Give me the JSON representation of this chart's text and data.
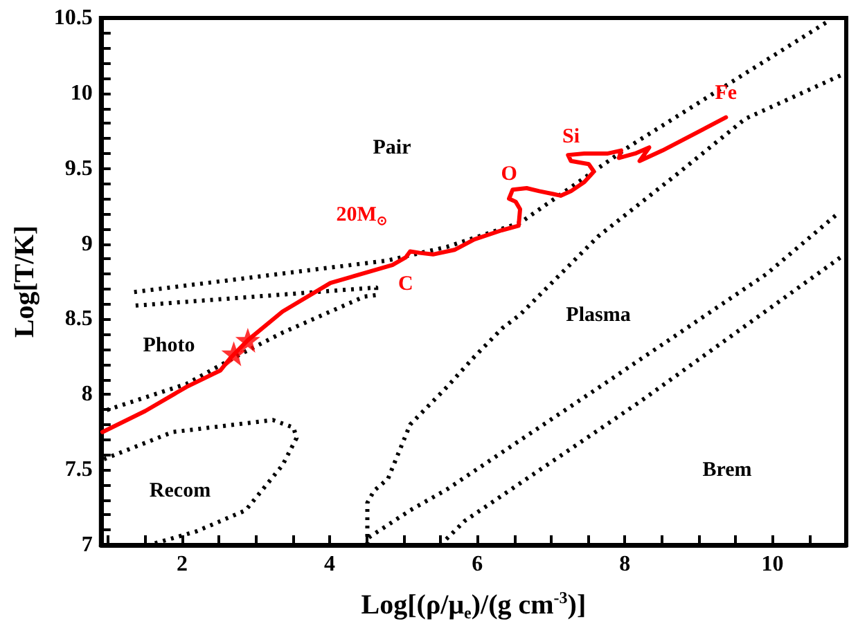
{
  "chart_data": {
    "type": "line",
    "xlabel": "Log[(ρ/μ$_{e}$)/(g cm$^{-3}$)]",
    "ylabel": "Log[T/K]",
    "xlim": [
      0.9,
      11
    ],
    "ylim": [
      7,
      10.5
    ],
    "xticks": [
      {
        "value": 1,
        "label": null
      },
      {
        "value": 1.5,
        "label": null
      },
      2,
      {
        "value": 2.5,
        "label": null
      },
      {
        "value": 3,
        "label": null
      },
      {
        "value": 3.5,
        "label": null
      },
      4,
      {
        "value": 4.5,
        "label": null
      },
      {
        "value": 5,
        "label": null
      },
      {
        "value": 5.5,
        "label": null
      },
      6,
      {
        "value": 6.5,
        "label": null
      },
      {
        "value": 7,
        "label": null
      },
      {
        "value": 7.5,
        "label": null
      },
      8,
      {
        "value": 8.5,
        "label": null
      },
      {
        "value": 9,
        "label": null
      },
      {
        "value": 9.5,
        "label": null
      },
      10,
      {
        "value": 10.5,
        "label": null
      }
    ],
    "yticks": [
      7,
      {
        "value": 7.1,
        "label": null
      },
      {
        "value": 7.2,
        "label": null
      },
      {
        "value": 7.3,
        "label": null
      },
      {
        "value": 7.4,
        "label": null
      },
      7.5,
      {
        "value": 7.6,
        "label": null
      },
      {
        "value": 7.7,
        "label": null
      },
      {
        "value": 7.8,
        "label": null
      },
      {
        "value": 7.9,
        "label": null
      },
      8,
      {
        "value": 8.1,
        "label": null
      },
      {
        "value": 8.2,
        "label": null
      },
      {
        "value": 8.3,
        "label": null
      },
      {
        "value": 8.4,
        "label": null
      },
      8.5,
      {
        "value": 8.6,
        "label": null
      },
      {
        "value": 8.7,
        "label": null
      },
      {
        "value": 8.8,
        "label": null
      },
      {
        "value": 8.9,
        "label": null
      },
      9,
      {
        "value": 9.1,
        "label": null
      },
      {
        "value": 9.2,
        "label": null
      },
      {
        "value": 9.3,
        "label": null
      },
      {
        "value": 9.4,
        "label": null
      },
      9.5,
      {
        "value": 9.6,
        "label": null
      },
      {
        "value": 9.7,
        "label": null
      },
      {
        "value": 9.8,
        "label": null
      },
      {
        "value": 9.9,
        "label": null
      },
      10,
      {
        "value": 10.1,
        "label": null
      },
      {
        "value": 10.2,
        "label": null
      },
      {
        "value": 10.3,
        "label": null
      },
      {
        "value": 10.4,
        "label": null
      },
      10.5
    ],
    "grid": false,
    "legend": false,
    "marker": "none",
    "line_style": "dotted",
    "series": [
      {
        "color": "#000000",
        "x": [
          1.35,
          4.79,
          5.59,
          6.58,
          8.07,
          10.76
        ],
        "values": [
          8.68,
          8.89,
          8.98,
          9.14,
          9.65,
          10.48
        ]
      },
      {
        "color": "#000000",
        "x": [
          1.37,
          4.63,
          4.63,
          4.47,
          3.36,
          2.8,
          2.06,
          0.94
        ],
        "values": [
          8.59,
          8.71,
          8.66,
          8.65,
          8.41,
          8.27,
          8.07,
          7.89
        ]
      },
      {
        "color": "#000000",
        "x": [
          0.94,
          1.87,
          3.23,
          3.51,
          3.55,
          3.36,
          2.86,
          2.19,
          1.55
        ],
        "values": [
          7.57,
          7.75,
          7.83,
          7.78,
          7.71,
          7.53,
          7.23,
          7.09,
          7.0
        ]
      },
      {
        "color": "#000000",
        "x": [
          4.51,
          4.51,
          4.6,
          4.79,
          5.09,
          5.59,
          5.96,
          6.34,
          6.58,
          7.13,
          7.64,
          8.7,
          9.63,
          10.93
        ],
        "values": [
          7.0,
          7.28,
          7.36,
          7.44,
          7.8,
          8.05,
          8.25,
          8.44,
          8.53,
          8.8,
          9.05,
          9.46,
          9.83,
          10.12
        ]
      },
      {
        "color": "#000000",
        "x": [
          4.53,
          5.09,
          5.59,
          7.75,
          9.92,
          10.86
        ],
        "values": [
          7.05,
          7.23,
          7.37,
          8.08,
          8.8,
          9.19
        ]
      },
      {
        "color": "#000000",
        "x": [
          5.5,
          5.83,
          8.2,
          10.61,
          10.95
        ],
        "values": [
          7.0,
          7.16,
          7.95,
          8.8,
          8.92
        ]
      },
      {
        "name": "20M$_{⊙}$",
        "color": "#ff0000",
        "line_style": "solid",
        "x": [
          0.92,
          1.5,
          2.06,
          2.52,
          2.65,
          2.89,
          3.36,
          4.01,
          4.85,
          5.03,
          5.09,
          5.22,
          5.4,
          5.69,
          5.96,
          6.33,
          6.56,
          6.58,
          6.52,
          6.43,
          6.48,
          6.67,
          6.84,
          7.04,
          7.13,
          7.27,
          7.45,
          7.58,
          7.51,
          7.27,
          7.23,
          7.45,
          7.77,
          7.95,
          7.92,
          8.14,
          8.33,
          8.2,
          8.51,
          9.37
        ],
        "values": [
          7.75,
          7.89,
          8.05,
          8.16,
          8.24,
          8.36,
          8.55,
          8.74,
          8.86,
          8.91,
          8.95,
          8.94,
          8.93,
          8.96,
          9.03,
          9.09,
          9.12,
          9.23,
          9.28,
          9.3,
          9.36,
          9.37,
          9.35,
          9.33,
          9.32,
          9.35,
          9.41,
          9.48,
          9.53,
          9.55,
          9.59,
          9.6,
          9.6,
          9.62,
          9.57,
          9.6,
          9.64,
          9.55,
          9.62,
          9.84
        ],
        "value_labels": [
          null,
          null,
          null,
          null,
          null,
          null,
          null,
          null,
          null,
          "C",
          null,
          null,
          null,
          null,
          null,
          null,
          null,
          null,
          null,
          "O",
          null,
          null,
          null,
          null,
          null,
          null,
          null,
          null,
          null,
          "Si",
          null,
          null,
          null,
          null,
          null,
          null,
          null,
          null,
          null,
          "Fe"
        ]
      },
      {
        "type": "scatter",
        "color": "#ff0000",
        "marker": "star",
        "x": [
          2.7,
          2.89
        ],
        "values": [
          8.27,
          8.36
        ]
      }
    ],
    "annotations": [
      "Pair",
      "Photo",
      "Recom",
      "Plasma",
      "Brem"
    ]
  }
}
